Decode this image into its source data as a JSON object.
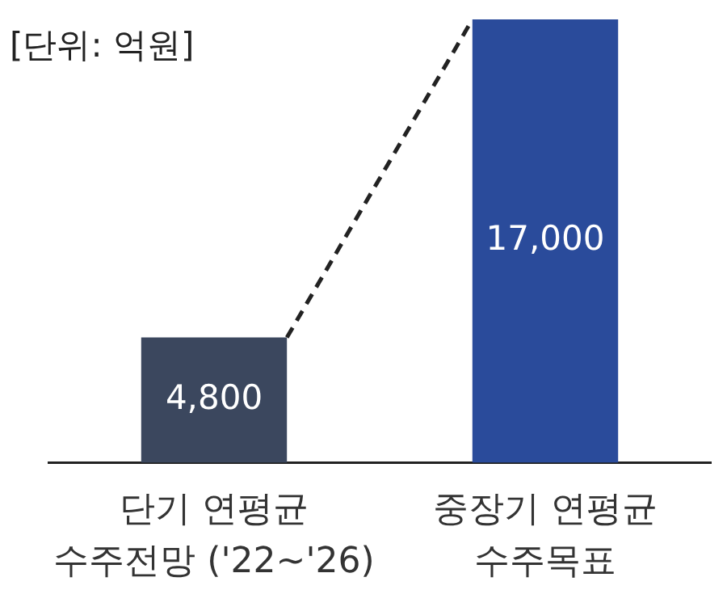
{
  "chart_data": {
    "type": "bar",
    "title": "[단위: 억원]",
    "categories": [
      "단기 연평균\n수주전망 ('22~'26)",
      "중장기 연평균\n수주목표"
    ],
    "values": [
      4800,
      17000
    ],
    "colors": [
      "#3b475e",
      "#2a4b9b"
    ],
    "value_labels": [
      "4,800",
      "17,000"
    ],
    "grid": false,
    "legend": false,
    "tick_labels": "x"
  }
}
